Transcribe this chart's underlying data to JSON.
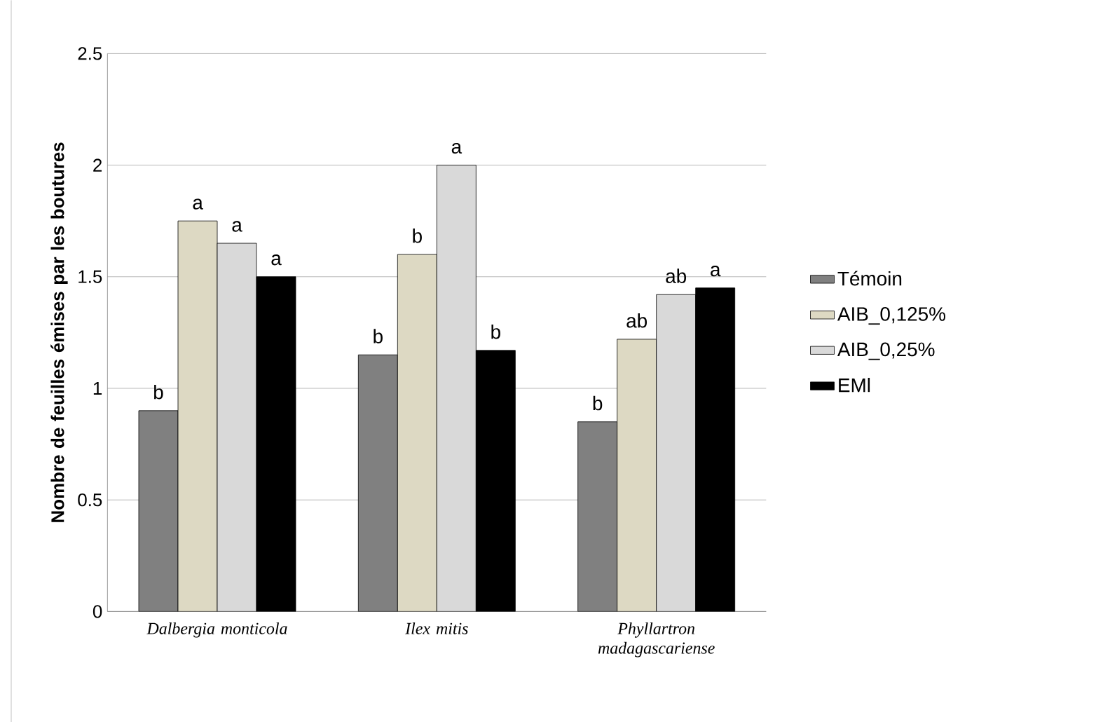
{
  "chart_data": {
    "type": "bar",
    "ylabel": "Nombre de feuilles émises par les boutures",
    "categories": [
      "Dalbergia monticola",
      "Ilex mitis",
      "Phyllartron madagascariense"
    ],
    "series": [
      {
        "name": "Témoin",
        "color": "#808080",
        "values": [
          0.9,
          1.15,
          0.85
        ]
      },
      {
        "name": "AIB_0,125%",
        "color": "#ddd9c3",
        "values": [
          1.75,
          1.6,
          1.22
        ]
      },
      {
        "name": "AIB_0,25%",
        "color": "#d9d9d9",
        "values": [
          1.65,
          2.0,
          1.42
        ]
      },
      {
        "name": "EMl",
        "color": "#000000",
        "values": [
          1.5,
          1.17,
          1.45
        ]
      }
    ],
    "ylim": [
      0,
      2.5
    ],
    "yticks": [
      0,
      0.5,
      1,
      1.5,
      2,
      2.5
    ],
    "grid": "y",
    "legend": "right",
    "annotations": [
      {
        "text": "b",
        "x": "Dalbergia monticola",
        "y": 0.9
      },
      {
        "text": "a",
        "x": "Dalbergia monticola",
        "y": 1.75
      },
      {
        "text": "a",
        "x": "Dalbergia monticola",
        "y": 1.65
      },
      {
        "text": "a",
        "x": "Dalbergia monticola",
        "y": 1.5
      },
      {
        "text": "b",
        "x": "Ilex mitis",
        "y": 1.15
      },
      {
        "text": "b",
        "x": "Ilex mitis",
        "y": 1.6
      },
      {
        "text": "a",
        "x": "Ilex mitis",
        "y": 2.0
      },
      {
        "text": "b",
        "x": "Ilex mitis",
        "y": 1.17
      },
      {
        "text": "b",
        "x": "Phyllartron madagascariense",
        "y": 0.85
      },
      {
        "text": "ab",
        "x": "Phyllartron madagascariense",
        "y": 1.22
      },
      {
        "text": "ab",
        "x": "Phyllartron madagascariense",
        "y": 1.42
      },
      {
        "text": "a",
        "x": "Phyllartron madagascariense",
        "y": 1.45
      }
    ]
  }
}
